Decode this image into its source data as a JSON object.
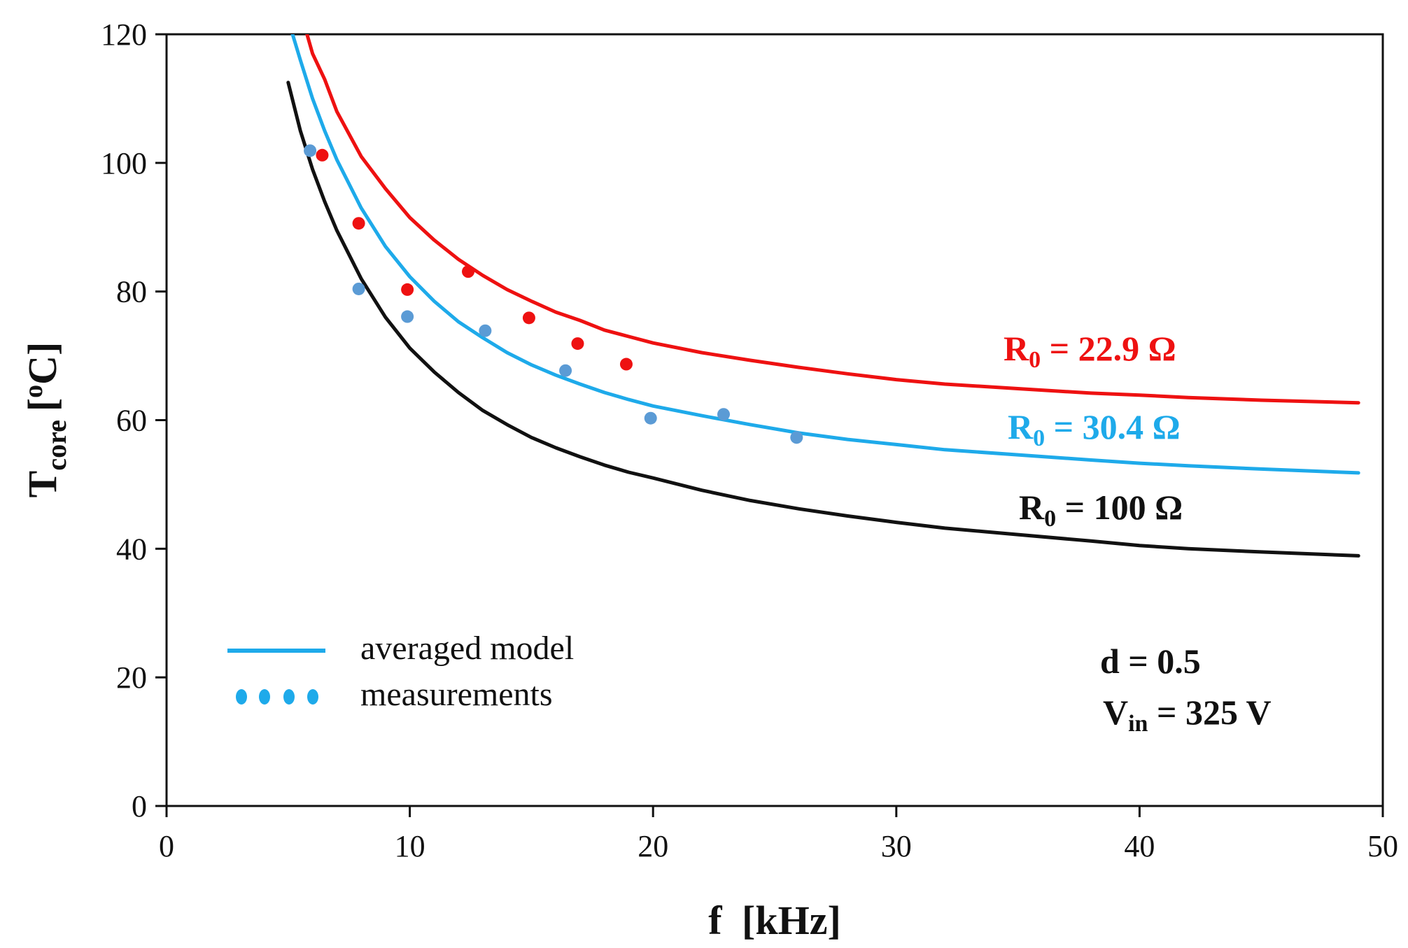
{
  "chart_data": {
    "type": "line",
    "xlabel_main": "f",
    "xlabel_unit": "[kHz]",
    "ylabel_main": "T",
    "ylabel_sub": "core",
    "ylabel_unit_open": "[",
    "ylabel_unit_sup": "o",
    "ylabel_unit_close": "C]",
    "xlim": [
      0,
      50
    ],
    "ylim": [
      0,
      120
    ],
    "x_ticks": [
      0,
      10,
      20,
      30,
      40,
      50
    ],
    "y_ticks": [
      0,
      20,
      40,
      60,
      80,
      100,
      120
    ],
    "x_tick_labels": [
      "0",
      "10",
      "20",
      "30",
      "40",
      "50"
    ],
    "y_tick_labels": [
      "0",
      "20",
      "40",
      "60",
      "80",
      "100",
      "120"
    ],
    "grid": false,
    "series": [
      {
        "label_main": "R",
        "label_sub": "0",
        "label_rest": " = 22.9 Ω",
        "color": "#ee1111",
        "model": [
          [
            5.7,
            121
          ],
          [
            6,
            117
          ],
          [
            6.5,
            113
          ],
          [
            7,
            108
          ],
          [
            8,
            101
          ],
          [
            9,
            96
          ],
          [
            10,
            91.5
          ],
          [
            11,
            88
          ],
          [
            12,
            85
          ],
          [
            13,
            82.5
          ],
          [
            14,
            80.3
          ],
          [
            15,
            78.5
          ],
          [
            16,
            76.8
          ],
          [
            17,
            75.5
          ],
          [
            18,
            74
          ],
          [
            19,
            73
          ],
          [
            20,
            72
          ],
          [
            22,
            70.5
          ],
          [
            24,
            69.3
          ],
          [
            26,
            68.2
          ],
          [
            28,
            67.2
          ],
          [
            30,
            66.3
          ],
          [
            32,
            65.6
          ],
          [
            35,
            64.9
          ],
          [
            38,
            64.2
          ],
          [
            40,
            63.9
          ],
          [
            42,
            63.5
          ],
          [
            45,
            63.1
          ],
          [
            49,
            62.7
          ]
        ],
        "measurements": [
          [
            6.4,
            101.2
          ],
          [
            7.9,
            90.6
          ],
          [
            9.9,
            80.3
          ],
          [
            12.4,
            83.1
          ],
          [
            14.9,
            75.9
          ],
          [
            16.9,
            71.9
          ],
          [
            18.9,
            68.7
          ]
        ]
      },
      {
        "label_main": "R",
        "label_sub": "0",
        "label_rest": " = 30.4 Ω",
        "color": "#1eaaea",
        "model": [
          [
            5.1,
            121
          ],
          [
            5.5,
            116
          ],
          [
            6,
            110
          ],
          [
            6.5,
            105
          ],
          [
            7,
            100.5
          ],
          [
            8,
            93
          ],
          [
            9,
            87
          ],
          [
            10,
            82.3
          ],
          [
            11,
            78.5
          ],
          [
            12,
            75.3
          ],
          [
            13,
            72.8
          ],
          [
            14,
            70.5
          ],
          [
            15,
            68.6
          ],
          [
            16,
            67
          ],
          [
            17,
            65.6
          ],
          [
            18,
            64.3
          ],
          [
            19,
            63.2
          ],
          [
            20,
            62.2
          ],
          [
            22,
            60.7
          ],
          [
            24,
            59.3
          ],
          [
            26,
            58
          ],
          [
            28,
            57
          ],
          [
            30,
            56.2
          ],
          [
            32,
            55.4
          ],
          [
            35,
            54.6
          ],
          [
            38,
            53.8
          ],
          [
            40,
            53.3
          ],
          [
            42,
            52.9
          ],
          [
            45,
            52.4
          ],
          [
            49,
            51.8
          ]
        ],
        "measurements": [
          [
            5.9,
            101.9
          ],
          [
            7.9,
            80.4
          ],
          [
            9.9,
            76.1
          ],
          [
            13.1,
            73.9
          ],
          [
            16.4,
            67.7
          ],
          [
            19.9,
            60.3
          ],
          [
            22.9,
            60.9
          ],
          [
            25.9,
            57.3
          ]
        ]
      },
      {
        "label_main": "R",
        "label_sub": "0",
        "label_rest": " = 100 Ω",
        "color": "#111111",
        "model": [
          [
            5.0,
            112.5
          ],
          [
            5.5,
            105
          ],
          [
            6,
            99
          ],
          [
            6.5,
            94
          ],
          [
            7,
            89.5
          ],
          [
            8,
            82
          ],
          [
            9,
            76
          ],
          [
            10,
            71.2
          ],
          [
            11,
            67.5
          ],
          [
            12,
            64.3
          ],
          [
            13,
            61.5
          ],
          [
            14,
            59.3
          ],
          [
            15,
            57.3
          ],
          [
            16,
            55.7
          ],
          [
            17,
            54.3
          ],
          [
            18,
            53
          ],
          [
            19,
            51.9
          ],
          [
            20,
            51
          ],
          [
            22,
            49.1
          ],
          [
            24,
            47.5
          ],
          [
            26,
            46.2
          ],
          [
            28,
            45.1
          ],
          [
            30,
            44.1
          ],
          [
            32,
            43.2
          ],
          [
            35,
            42.2
          ],
          [
            38,
            41.2
          ],
          [
            40,
            40.5
          ],
          [
            42,
            40
          ],
          [
            45,
            39.5
          ],
          [
            49,
            38.9
          ]
        ],
        "measurements": []
      }
    ],
    "measurement_color": "#5b9bd5",
    "legend": {
      "placement": "bottom-left",
      "line_label": "averaged model",
      "marker_label": "measurements",
      "color": "#1eaaea"
    },
    "conditions": {
      "d_label": "d = 0.5",
      "vin_main": "V",
      "vin_sub": "in",
      "vin_rest": " = 325 V"
    }
  }
}
